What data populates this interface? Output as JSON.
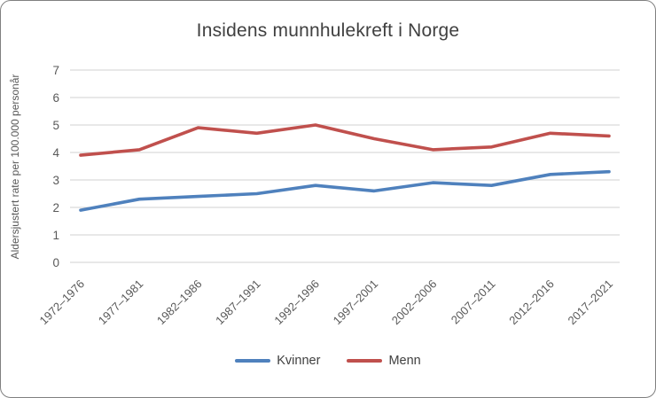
{
  "chart_data": {
    "type": "line",
    "title": "Insidens munnhulekreft i Norge",
    "ylabel": "Aldersjustert rate per 100.000 personår",
    "xlabel": "",
    "categories": [
      "1972–1976",
      "1977–1981",
      "1982–1986",
      "1987–1991",
      "1992–1996",
      "1997–2001",
      "2002–2006",
      "2007–2011",
      "2012–2016",
      "2017–2021"
    ],
    "series": [
      {
        "name": "Kvinner",
        "color": "#4F81BD",
        "values": [
          1.9,
          2.3,
          2.4,
          2.5,
          2.8,
          2.6,
          2.9,
          2.8,
          3.2,
          3.3
        ]
      },
      {
        "name": "Menn",
        "color": "#C0504D",
        "values": [
          3.9,
          4.1,
          4.9,
          4.7,
          5.0,
          4.5,
          4.1,
          4.2,
          4.7,
          4.6
        ]
      }
    ],
    "ylim": [
      0,
      7
    ],
    "ytick_step": 1,
    "yticks": [
      "0",
      "1",
      "2",
      "3",
      "4",
      "5",
      "6",
      "7"
    ],
    "grid": "horizontal",
    "grid_color": "#D9D9D9",
    "tick_color": "#595959",
    "title_color": "#404040",
    "legend_position": "bottom"
  }
}
